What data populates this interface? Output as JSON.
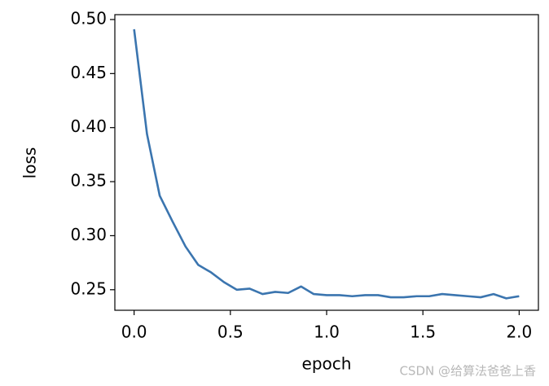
{
  "chart_data": {
    "type": "line",
    "xlabel": "epoch",
    "ylabel": "loss",
    "watermark": "CSDN @给算法爸爸上香",
    "x": [
      0,
      0.067,
      0.133,
      0.2,
      0.267,
      0.333,
      0.4,
      0.467,
      0.533,
      0.6,
      0.667,
      0.733,
      0.8,
      0.867,
      0.933,
      1.0,
      1.067,
      1.133,
      1.2,
      1.267,
      1.333,
      1.4,
      1.467,
      1.533,
      1.6,
      1.667,
      1.733,
      1.8,
      1.867,
      1.933,
      2.0
    ],
    "series": [
      {
        "color": "#3b75af",
        "values": [
          0.491,
          0.394,
          0.337,
          0.313,
          0.29,
          0.273,
          0.266,
          0.257,
          0.25,
          0.251,
          0.246,
          0.248,
          0.247,
          0.253,
          0.246,
          0.245,
          0.245,
          0.244,
          0.245,
          0.245,
          0.243,
          0.243,
          0.244,
          0.244,
          0.246,
          0.245,
          0.244,
          0.243,
          0.246,
          0.242,
          0.244
        ]
      }
    ],
    "xlim": [
      -0.1,
      2.1
    ],
    "ylim": [
      0.231,
      0.5045
    ],
    "xticks": [
      {
        "value": 0,
        "label": "0.0"
      },
      0.5,
      {
        "value": 1,
        "label": "1.0"
      },
      1.5,
      {
        "value": 2,
        "label": "2.0"
      }
    ],
    "yticks": [
      0.25,
      {
        "value": 0.3,
        "label": "0.30"
      },
      0.35,
      {
        "value": 0.4,
        "label": "0.40"
      },
      0.45,
      {
        "value": 0.5,
        "label": "0.50"
      }
    ]
  }
}
